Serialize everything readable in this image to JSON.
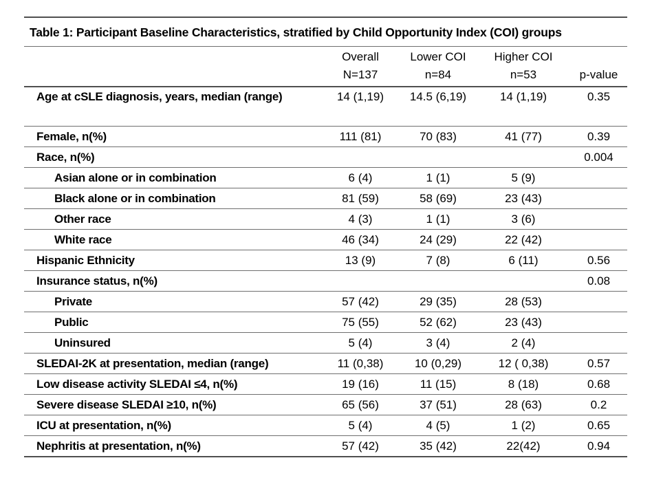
{
  "title": "Table 1: Participant Baseline Characteristics, stratified by Child Opportunity Index (COI) groups",
  "colors": {
    "background": "#ffffff",
    "text": "#000000",
    "rule_thin": "#6e6e6e",
    "rule_thick": "#4f4f4f"
  },
  "table": {
    "columns": [
      {
        "title": "Overall",
        "subtitle": "N=137"
      },
      {
        "title": "Lower COI",
        "subtitle": "n=84"
      },
      {
        "title": "Higher COI",
        "subtitle": "n=53"
      },
      {
        "title": "",
        "subtitle": "p-value"
      }
    ],
    "rows": [
      {
        "label": "Age at cSLE diagnosis, years, median (range)",
        "sub": false,
        "tall": true,
        "values": [
          "14 (1,19)",
          "14.5 (6,19)",
          "14 (1,19)",
          "0.35"
        ]
      },
      {
        "label": "Female, n(%)",
        "sub": false,
        "tall": false,
        "values": [
          "111 (81)",
          "70 (83)",
          "41 (77)",
          "0.39"
        ]
      },
      {
        "label": "Race, n(%)",
        "sub": false,
        "tall": false,
        "values": [
          "",
          "",
          "",
          "0.004"
        ]
      },
      {
        "label": "Asian alone or in combination",
        "sub": true,
        "tall": false,
        "values": [
          "6 (4)",
          "1 (1)",
          "5 (9)",
          ""
        ]
      },
      {
        "label": "Black alone or in combination",
        "sub": true,
        "tall": false,
        "values": [
          "81 (59)",
          "58 (69)",
          "23 (43)",
          ""
        ]
      },
      {
        "label": "Other race",
        "sub": true,
        "tall": false,
        "values": [
          "4 (3)",
          "1 (1)",
          "3 (6)",
          ""
        ]
      },
      {
        "label": "White race",
        "sub": true,
        "tall": false,
        "values": [
          "46 (34)",
          "24 (29)",
          "22 (42)",
          ""
        ]
      },
      {
        "label": "Hispanic Ethnicity",
        "sub": false,
        "tall": false,
        "values": [
          "13 (9)",
          "7 (8)",
          "6 (11)",
          "0.56"
        ]
      },
      {
        "label": "Insurance status, n(%)",
        "sub": false,
        "tall": false,
        "values": [
          "",
          "",
          "",
          "0.08"
        ]
      },
      {
        "label": "Private",
        "sub": true,
        "tall": false,
        "values": [
          "57 (42)",
          "29 (35)",
          "28 (53)",
          ""
        ]
      },
      {
        "label": "Public",
        "sub": true,
        "tall": false,
        "values": [
          "75 (55)",
          "52 (62)",
          "23 (43)",
          ""
        ]
      },
      {
        "label": "Uninsured",
        "sub": true,
        "tall": false,
        "values": [
          "5 (4)",
          "3 (4)",
          "2 (4)",
          ""
        ]
      },
      {
        "label": "SLEDAI-2K at presentation, median (range)",
        "sub": false,
        "tall": false,
        "values": [
          "11 (0,38)",
          "10 (0,29)",
          "12 ( 0,38)",
          "0.57"
        ]
      },
      {
        "label": "Low disease activity SLEDAI ≤4, n(%)",
        "sub": false,
        "tall": false,
        "values": [
          "19 (16)",
          "11 (15)",
          "8 (18)",
          "0.68"
        ]
      },
      {
        "label": "Severe disease SLEDAI ≥10, n(%)",
        "sub": false,
        "tall": false,
        "values": [
          "65 (56)",
          "37 (51)",
          "28 (63)",
          "0.2"
        ]
      },
      {
        "label": "ICU at presentation, n(%)",
        "sub": false,
        "tall": false,
        "values": [
          "5 (4)",
          "4 (5)",
          "1 (2)",
          "0.65"
        ]
      },
      {
        "label": "Nephritis at presentation, n(%)",
        "sub": false,
        "tall": false,
        "values": [
          "57 (42)",
          "35 (42)",
          "22(42)",
          "0.94"
        ]
      }
    ]
  }
}
